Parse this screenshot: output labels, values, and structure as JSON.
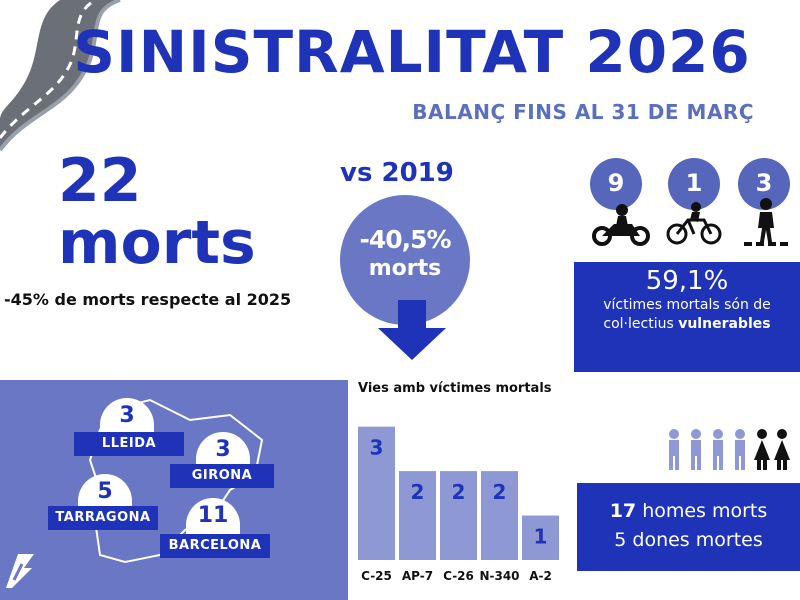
{
  "header": {
    "title": "SINISTRALITAT 2026",
    "subtitle": "BALANÇ FINS AL 31 DE MARÇ"
  },
  "deaths": {
    "count": "22",
    "unit": "morts",
    "note": "-45% de morts respecte al 2025"
  },
  "comparison": {
    "label": "vs 2019",
    "change": "-40,5%",
    "change_unit": "morts"
  },
  "vulnerable": {
    "badges": [
      {
        "value": "9",
        "icon": "motorcycle-icon"
      },
      {
        "value": "1",
        "icon": "bicycle-icon"
      },
      {
        "value": "3",
        "icon": "pedestrian-icon"
      }
    ],
    "percent": "59,1%",
    "line1": "víctimes mortals són de",
    "line2_prefix": "col·lectius",
    "line2_bold": "vulnerables"
  },
  "provinces": [
    {
      "name": "LLEIDA",
      "value": "3"
    },
    {
      "name": "GIRONA",
      "value": "3"
    },
    {
      "name": "TARRAGONA",
      "value": "5"
    },
    {
      "name": "BARCELONA",
      "value": "11"
    }
  ],
  "chart_data": {
    "type": "bar",
    "title": "Vies amb víctimes mortals",
    "categories": [
      "C-25",
      "AP-7",
      "C-26",
      "N-340",
      "A-2"
    ],
    "values": [
      3,
      2,
      2,
      2,
      1
    ],
    "ylim": [
      0,
      3.6
    ],
    "bar_color": "#8e98d4",
    "label_color": "#1f33b8"
  },
  "gender": {
    "men_count": "17",
    "men_label": "homes morts",
    "women_line": "5 dones mortes"
  },
  "colors": {
    "primary": "#1f33b8",
    "secondary": "#6a77c4",
    "light": "#8e98d4"
  }
}
